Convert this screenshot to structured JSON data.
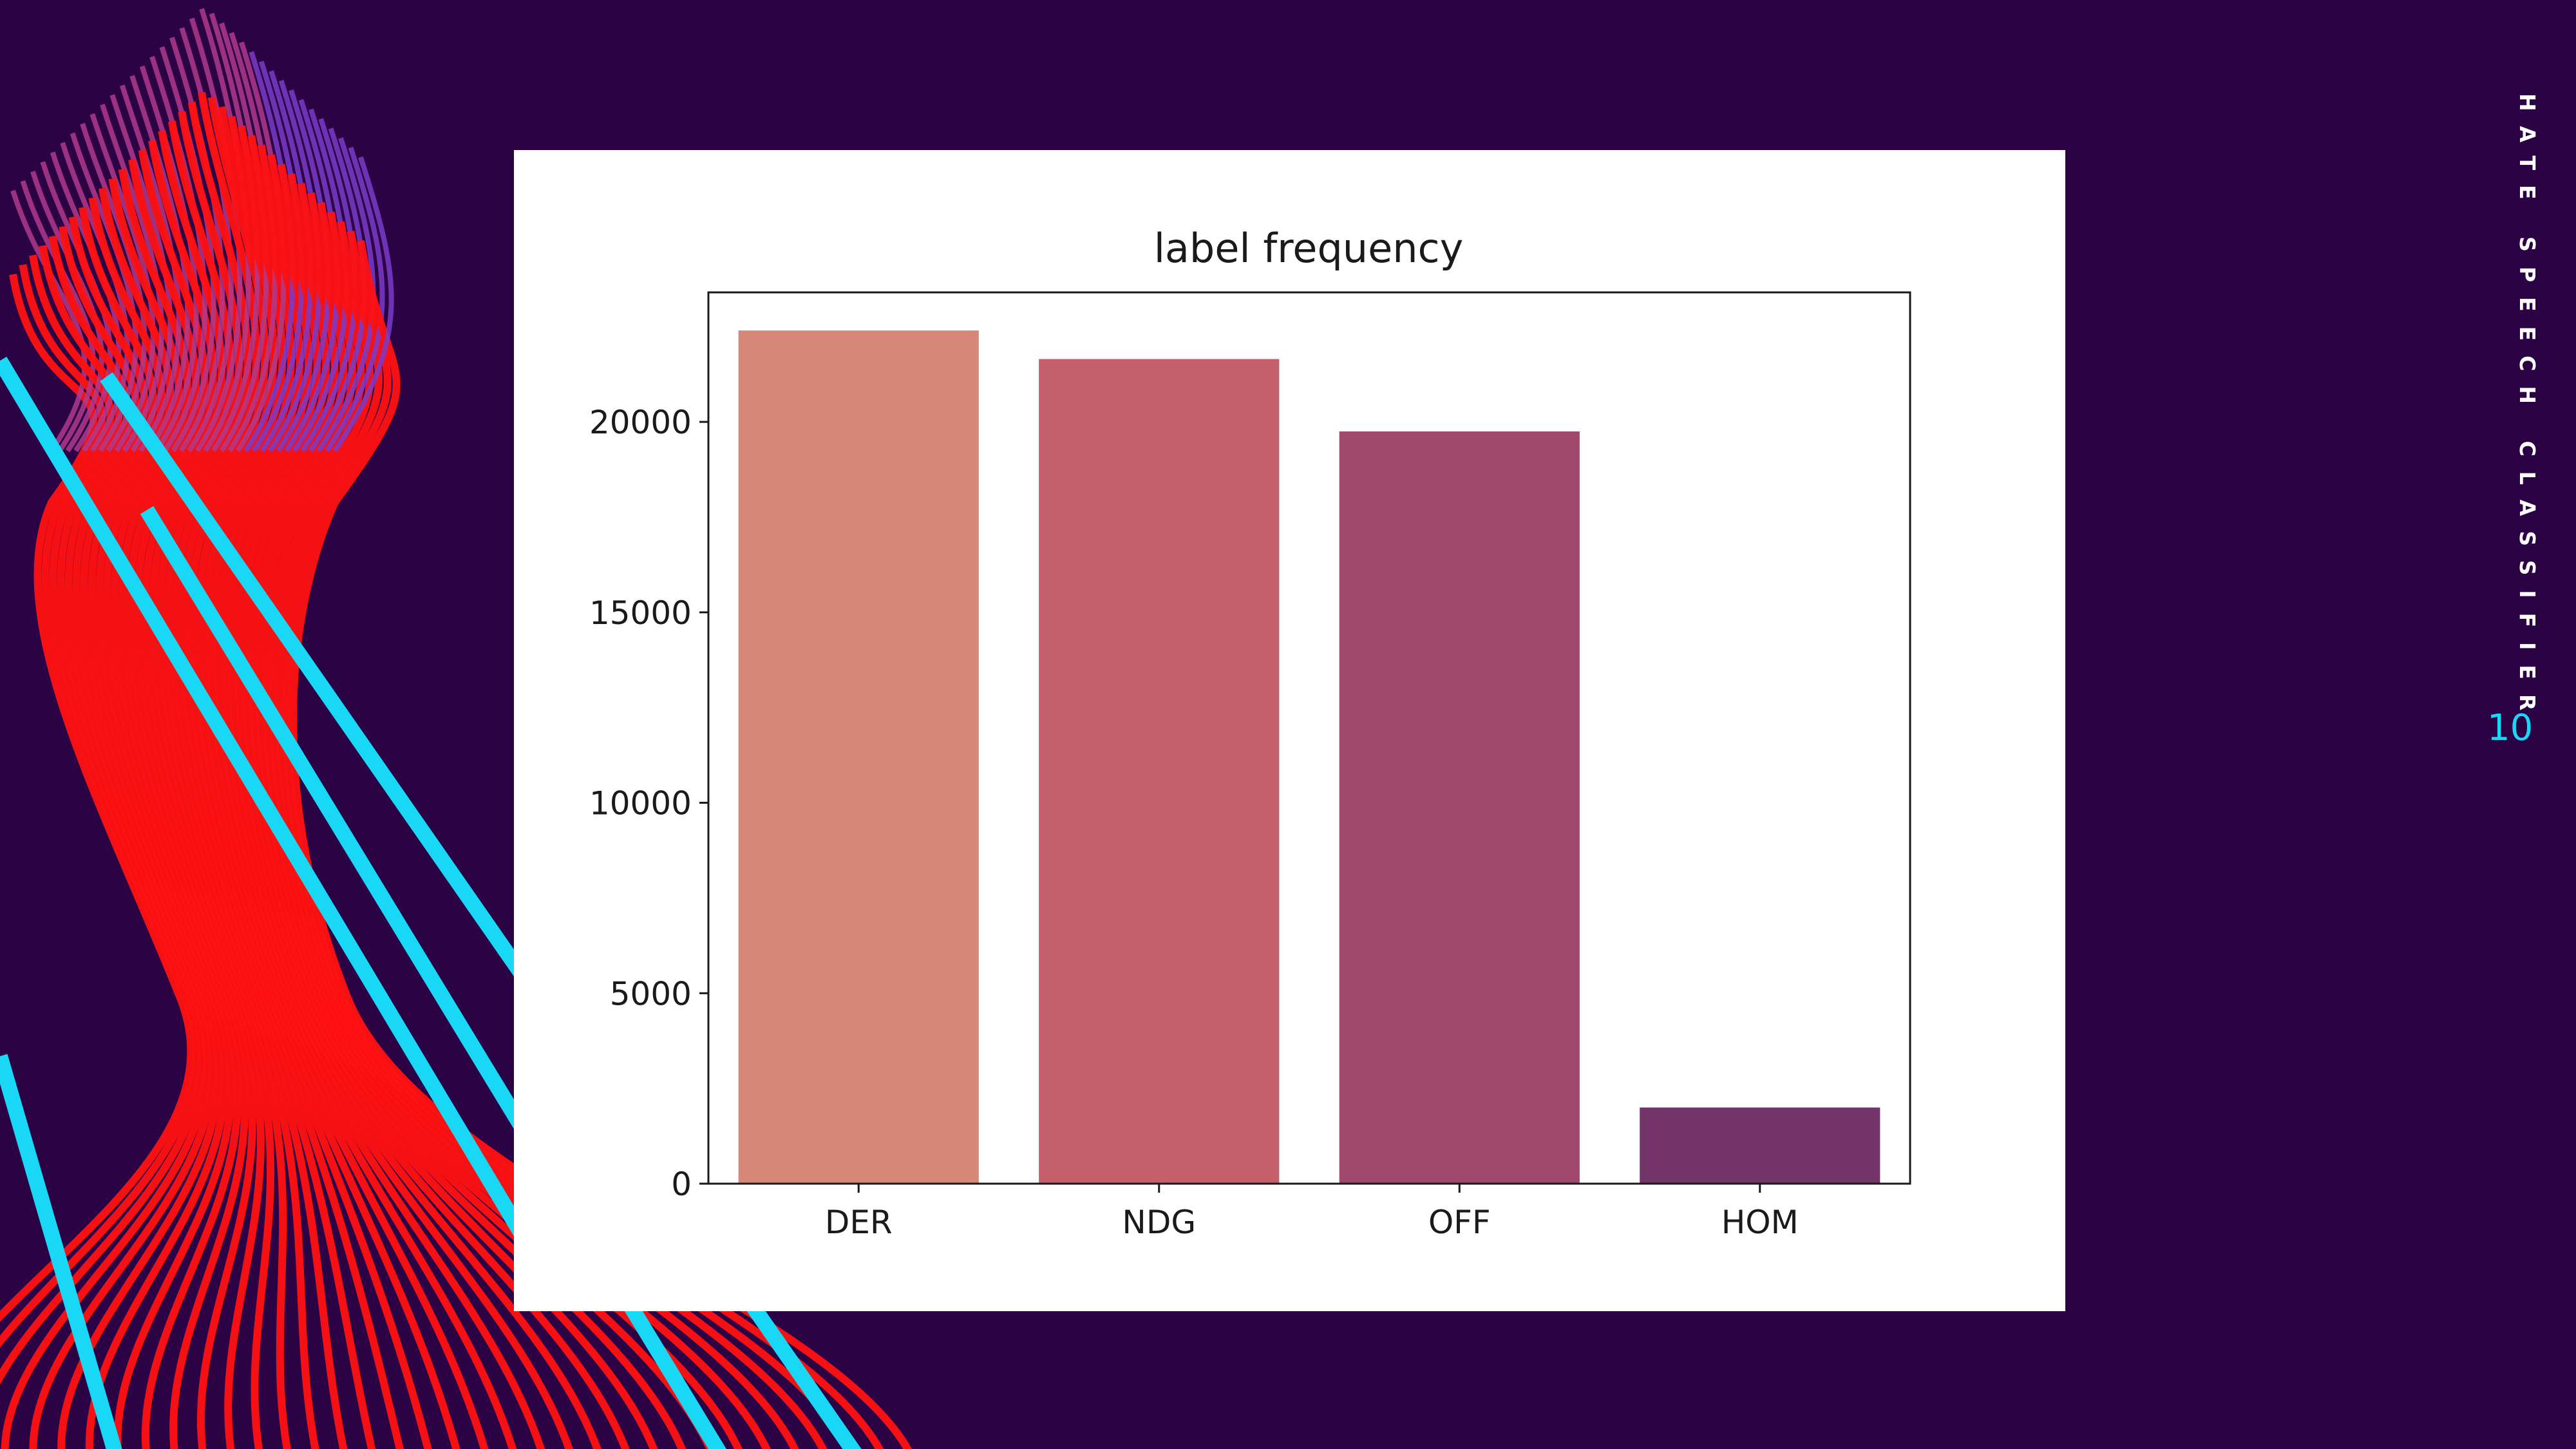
{
  "slide": {
    "side_title": "HATE SPEECH CLASSIFIER",
    "page_number": "10"
  },
  "colors": {
    "background": "#2b0345",
    "accent_cyan": "#19d8f5",
    "wave_red": "#ff1111",
    "wave_purple": "#7a3cc8"
  },
  "chart_data": {
    "type": "bar",
    "title": "label frequency",
    "xlabel": "",
    "ylabel": "",
    "categories": [
      "DER",
      "NDG",
      "OFF",
      "HOM"
    ],
    "values": [
      22400,
      21650,
      19750,
      2000
    ],
    "bar_colors": [
      "#d58877",
      "#c4606b",
      "#9e486e",
      "#73346a"
    ],
    "ylim": [
      0,
      23400
    ],
    "yticks": [
      0,
      5000,
      10000,
      15000,
      20000
    ],
    "grid": false
  }
}
